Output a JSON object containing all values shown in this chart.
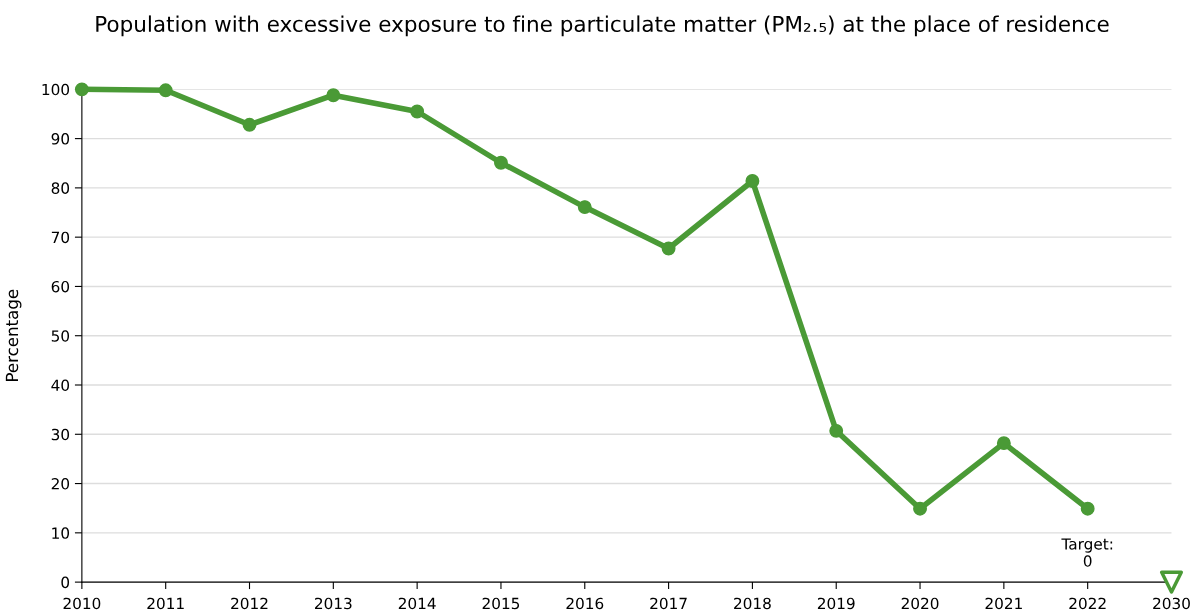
{
  "chart_data": {
    "type": "line",
    "title": "Population with excessive exposure to fine particulate matter (PM₂.₅) at the place of residence",
    "ylabel": "Percentage",
    "categories": [
      "2010",
      "2011",
      "2012",
      "2013",
      "2014",
      "2015",
      "2016",
      "2017",
      "2018",
      "2019",
      "2020",
      "2021",
      "2022",
      "2030"
    ],
    "series": [
      {
        "color": "#4a9a36",
        "marker": "circle",
        "values": [
          100,
          99.8,
          92.8,
          98.8,
          95.5,
          85.1,
          76.1,
          67.7,
          81.4,
          30.7,
          14.9,
          28.2,
          14.9,
          null
        ]
      },
      {
        "type": "scatter",
        "color": "#4a9a36",
        "marker": "triangle",
        "values": [
          null,
          null,
          null,
          null,
          null,
          null,
          null,
          null,
          null,
          null,
          null,
          null,
          null,
          0
        ]
      }
    ],
    "annotations": [
      "Target:\n0"
    ],
    "ylim": [
      0,
      100
    ],
    "yticks": [
      0,
      10,
      20,
      30,
      40,
      50,
      60,
      70,
      80,
      90,
      100
    ],
    "grid": "y",
    "legend": false
  }
}
